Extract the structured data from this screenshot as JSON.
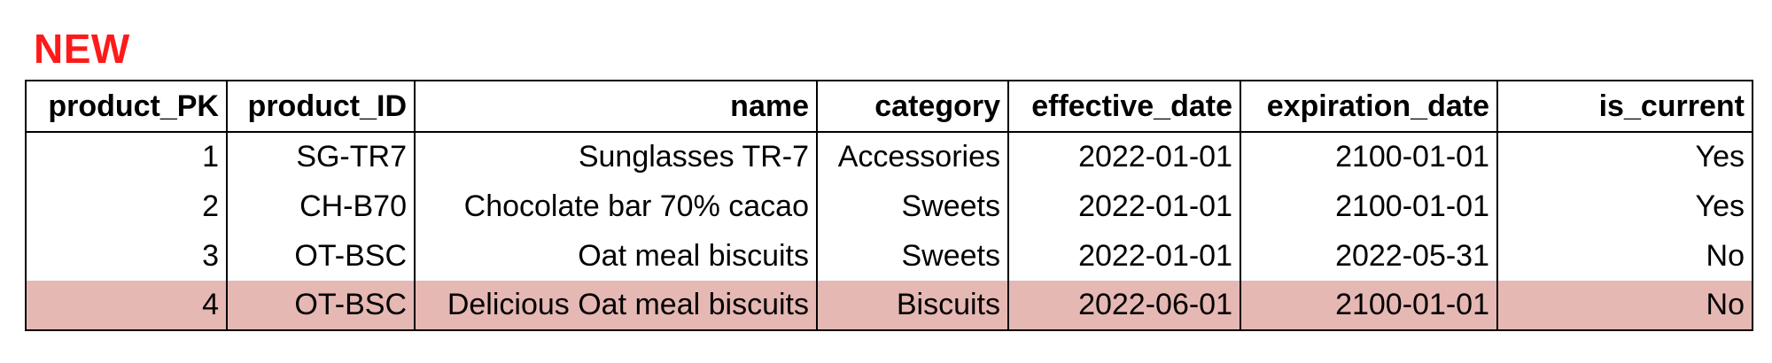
{
  "title": {
    "text": "NEW",
    "color": "#ff1a1a"
  },
  "table": {
    "columns": [
      "product_PK",
      "product_ID",
      "name",
      "category",
      "effective_date",
      "expiration_date",
      "is_current"
    ],
    "rows": [
      [
        "1",
        "SG-TR7",
        "Sunglasses TR-7",
        "Accessories",
        "2022-01-01",
        "2100-01-01",
        "Yes"
      ],
      [
        "2",
        "CH-B70",
        "Chocolate bar 70% cacao",
        "Sweets",
        "2022-01-01",
        "2100-01-01",
        "Yes"
      ],
      [
        "3",
        "OT-BSC",
        "Oat meal biscuits",
        "Sweets",
        "2022-01-01",
        "2022-05-31",
        "No"
      ],
      [
        "4",
        "OT-BSC",
        "Delicious Oat meal biscuits",
        "Biscuits",
        "2022-06-01",
        "2100-01-01",
        "No"
      ]
    ],
    "highlighted_row_index": 3,
    "highlight_color": "#e6b8b3"
  }
}
